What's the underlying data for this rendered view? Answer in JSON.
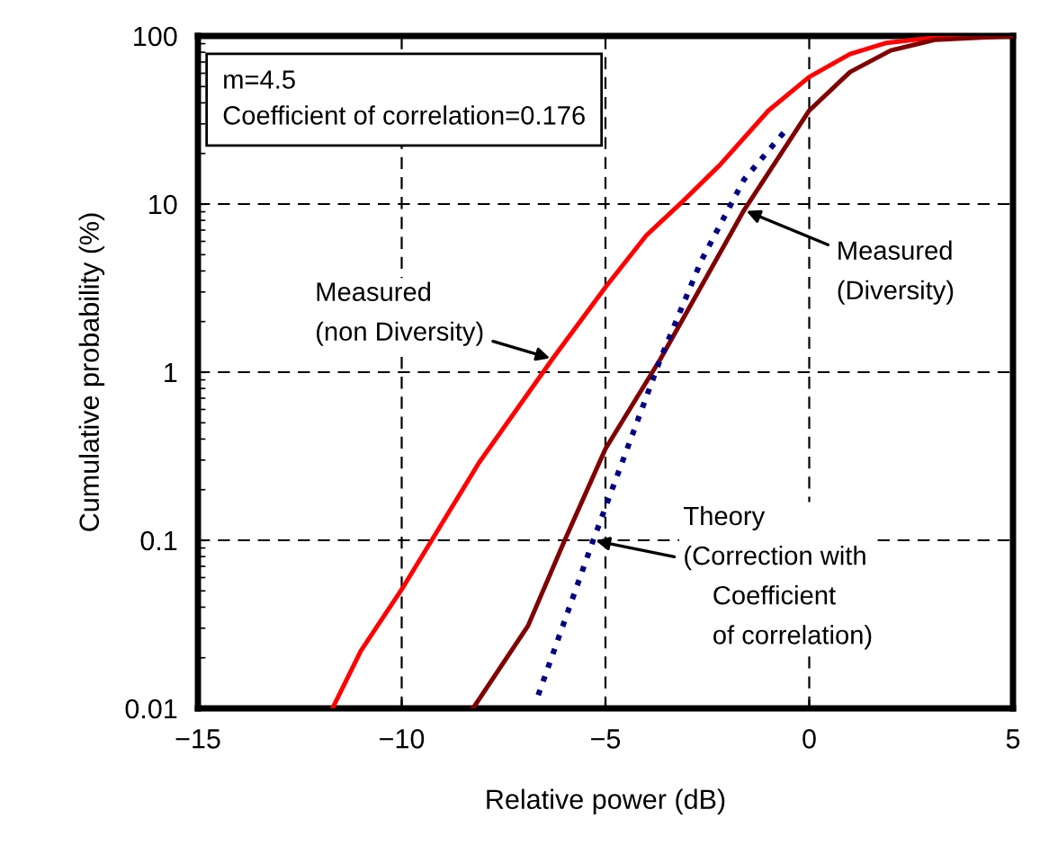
{
  "chart_data": {
    "type": "line",
    "xlabel": "Relative power (dB)",
    "ylabel": "Cumulative probability (%)",
    "log": "y",
    "grid": true,
    "xlim": [
      -15,
      5
    ],
    "ylim": [
      0.01,
      100
    ],
    "xticks": [
      {
        "value": -15,
        "label": "−15"
      },
      {
        "value": -10,
        "label": "−10"
      },
      {
        "value": -5,
        "label": "−5"
      },
      0,
      5
    ],
    "yticks": [
      0.01,
      0.1,
      1,
      10,
      100
    ],
    "series": [
      {
        "color": "#ff0000",
        "line_style": "solid",
        "x": [
          -11.7,
          -11.0,
          -10.0,
          -8.1,
          -6.3,
          -5.0,
          -4.0,
          -3.1,
          -2.2,
          -1.0,
          0.0,
          1.0,
          1.9,
          3.1,
          5.0
        ],
        "values": [
          0.01,
          0.022,
          0.051,
          0.29,
          1.2,
          3.2,
          6.5,
          10.4,
          17,
          36,
          57,
          78,
          91,
          98,
          100
        ]
      },
      {
        "color": "#800000",
        "line_style": "solid",
        "x": [
          -8.25,
          -6.9,
          -6.0,
          -5.0,
          -3.65,
          -1.6,
          0.0,
          1.0,
          2.0,
          3.1,
          5.0
        ],
        "values": [
          0.01,
          0.031,
          0.1,
          0.35,
          1.2,
          9.2,
          36,
          61,
          82,
          95,
          100
        ]
      },
      {
        "color": "#000080",
        "line_style": "dotted",
        "x": [
          -6.65,
          -5.3,
          -3.65,
          -2.65,
          -1.6,
          -0.55
        ],
        "values": [
          0.012,
          0.1,
          1.2,
          4.6,
          14,
          28
        ]
      }
    ],
    "annotations": [
      "m=4.5\nCoefficient of correlation=0.176",
      {
        "text": "Measured\n(non Diversity)",
        "x": -6.3,
        "y": 1.2
      },
      {
        "text": "Measured\n(Diversity)",
        "x": -1.6,
        "y": 9.2
      },
      {
        "text": "Theory\n(Correction with\n    Coefficient\n    of correlation)",
        "x": -5.3,
        "y": 0.1
      }
    ]
  }
}
